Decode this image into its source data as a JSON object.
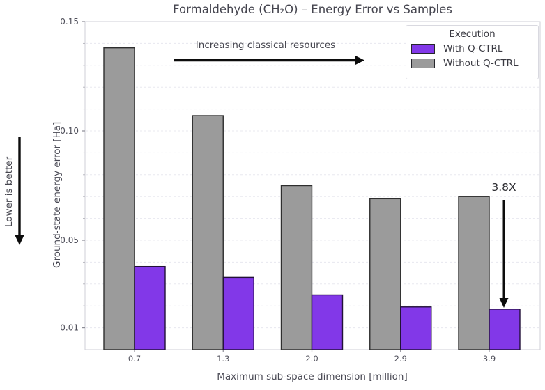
{
  "chart_data": {
    "type": "bar",
    "title": "Formaldehyde (CH₂O) – Energy Error vs Samples",
    "xlabel": "Maximum sub-space dimension [million]",
    "ylabel": "Ground-state energy error [Ha]",
    "categories": [
      "0.7",
      "1.3",
      "2.0",
      "2.9",
      "3.9"
    ],
    "series": [
      {
        "name": "With Q-CTRL",
        "color": "#8238e8",
        "edge": "#221138",
        "values": [
          0.038,
          0.033,
          0.025,
          0.0195,
          0.0185
        ]
      },
      {
        "name": "Without Q-CTRL",
        "color": "#9b9b9b",
        "edge": "#2e2e2e",
        "values": [
          0.138,
          0.107,
          0.075,
          0.069,
          0.07
        ]
      }
    ],
    "ylim": [
      0,
      0.15
    ],
    "yticks": {
      "values": [
        0.01,
        0.05,
        0.1,
        0.15
      ],
      "labels": [
        "0.01",
        "0.05",
        "0.10",
        "0.15"
      ]
    },
    "minor_grid_step": 0.01,
    "grid": "horizontal-dashed",
    "legend": {
      "title": "Execution",
      "position": "upper-right"
    },
    "annotations": [
      {
        "text": "Increasing classical resources",
        "arrow": "right"
      },
      {
        "text": "Lower is better",
        "arrow": "down"
      },
      {
        "text": "3.8X",
        "arrow": "down"
      }
    ]
  }
}
